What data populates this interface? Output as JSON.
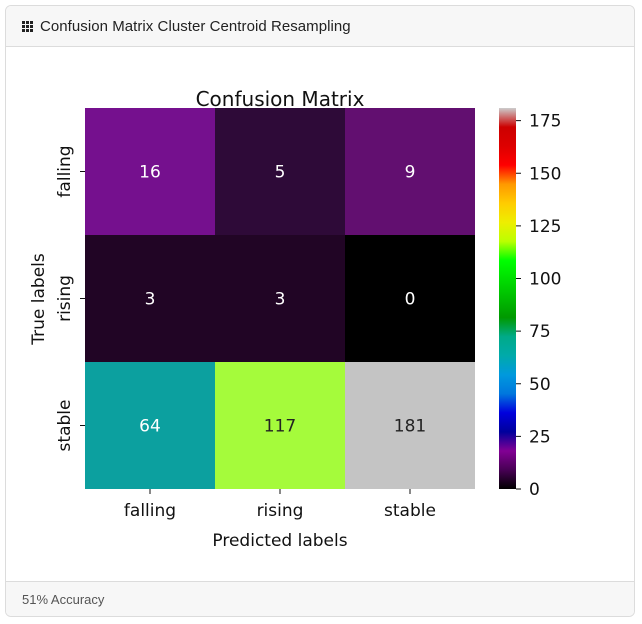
{
  "header": {
    "title": "Confusion Matrix Cluster Centroid Resampling",
    "icon": "grid-icon"
  },
  "footer": {
    "text": "51% Accuracy"
  },
  "chart_data": {
    "type": "heatmap",
    "title": "Confusion Matrix",
    "xlabel": "Predicted labels",
    "ylabel": "True labels",
    "x_categories": [
      "falling",
      "rising",
      "stable"
    ],
    "y_categories": [
      "falling",
      "rising",
      "stable"
    ],
    "matrix": [
      [
        16,
        5,
        9
      ],
      [
        3,
        3,
        0
      ],
      [
        64,
        117,
        181
      ]
    ],
    "colormap": "nipy_spectral",
    "vmin": 0,
    "vmax": 181,
    "colorbar_ticks": [
      0,
      25,
      50,
      75,
      100,
      125,
      150,
      175
    ],
    "cell_colors": [
      [
        "#75108e",
        "#2e0a38",
        "#620f70"
      ],
      [
        "#210525",
        "#210525",
        "#000000"
      ],
      [
        "#0ca09f",
        "#a5fb3b",
        "#c4c4c4"
      ]
    ],
    "annotation_colors": [
      [
        "#ffffff",
        "#ffffff",
        "#ffffff"
      ],
      [
        "#ffffff",
        "#ffffff",
        "#ffffff"
      ],
      [
        "#ffffff",
        "#222222",
        "#222222"
      ]
    ]
  }
}
